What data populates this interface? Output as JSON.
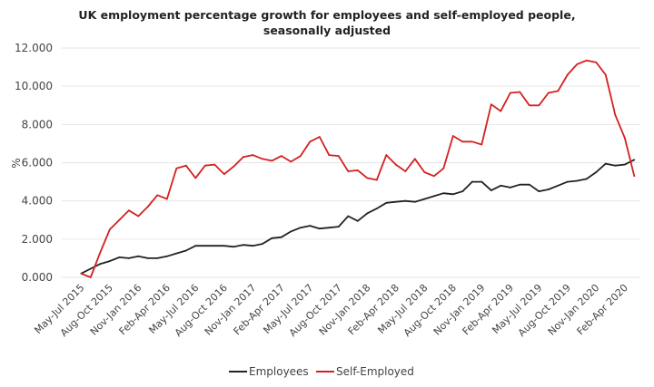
{
  "chart_data": {
    "type": "line",
    "title": [
      "UK employment percentage growth for employees and self-employed people,",
      "seasonally adjusted"
    ],
    "ylabel": "%",
    "xlabel": "",
    "ylim": [
      0,
      12
    ],
    "y_ticks": [
      "0.000",
      "2.000",
      "4.000",
      "6.000",
      "8.000",
      "10.000",
      "12.000"
    ],
    "grid": "horizontal",
    "legend_position": "bottom",
    "x_tick_labels": [
      "May-Jul 2015",
      "Aug-Oct 2015",
      "Nov-Jan 2016",
      "Feb-Apr 2016",
      "May-Jul 2016",
      "Aug-Oct 2016",
      "Nov-Jan 2017",
      "Feb-Apr 2017",
      "May-Jul 2017",
      "Aug-Oct 2017",
      "Nov-Jan 2018",
      "Feb-Apr 2018",
      "May-Jul 2018",
      "Aug-Oct 2018",
      "Nov-Jan 2019",
      "Feb-Apr 2019",
      "May-Jul 2019",
      "Aug-Oct 2019",
      "Nov-Jan 2020",
      "Feb-Apr 2020"
    ],
    "series": [
      {
        "name": "Employees",
        "color": "#222222",
        "values": [
          0.2,
          0.45,
          0.7,
          0.85,
          1.05,
          1.0,
          1.1,
          1.0,
          1.0,
          1.1,
          1.25,
          1.4,
          1.65,
          1.65,
          1.65,
          1.65,
          1.6,
          1.7,
          1.65,
          1.75,
          2.05,
          2.1,
          2.4,
          2.6,
          2.7,
          2.55,
          2.6,
          2.65,
          3.2,
          2.95,
          3.35,
          3.6,
          3.9,
          3.95,
          4.0,
          3.95,
          4.1,
          4.25,
          4.4,
          4.35,
          4.5,
          5.0,
          5.0,
          4.55,
          4.8,
          4.7,
          4.85,
          4.85,
          4.5,
          4.6,
          4.8,
          5.0,
          5.05,
          5.15,
          5.5,
          5.95,
          5.85,
          5.9,
          6.15
        ]
      },
      {
        "name": "Self-Employed",
        "color": "#d42020",
        "values": [
          0.2,
          0.0,
          1.3,
          2.5,
          3.0,
          3.5,
          3.2,
          3.7,
          4.3,
          4.1,
          5.7,
          5.85,
          5.2,
          5.85,
          5.9,
          5.4,
          5.8,
          6.3,
          6.4,
          6.2,
          6.1,
          6.35,
          6.05,
          6.35,
          7.1,
          7.35,
          6.4,
          6.35,
          5.55,
          5.6,
          5.2,
          5.1,
          6.4,
          5.9,
          5.55,
          6.2,
          5.5,
          5.3,
          5.7,
          7.4,
          7.1,
          7.1,
          6.95,
          9.05,
          8.7,
          9.65,
          9.7,
          9.0,
          9.0,
          9.65,
          9.75,
          10.6,
          11.15,
          11.35,
          11.25,
          10.6,
          8.5,
          7.3,
          5.3
        ]
      }
    ]
  }
}
